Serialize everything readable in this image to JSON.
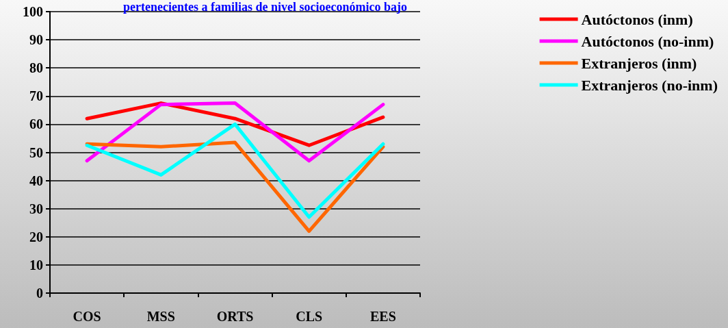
{
  "chart_data": {
    "type": "line",
    "title": "pertenecientes a familias de nivel socioeconómico bajo",
    "categories": [
      "COS",
      "MSS",
      "ORTS",
      "CLS",
      "EES"
    ],
    "series": [
      {
        "name": "Autóctonos (inm)",
        "color": "#ff0000",
        "values": [
          62,
          67.5,
          62,
          52.5,
          62.5
        ]
      },
      {
        "name": "Autóctonos (no-inm)",
        "color": "#ff00ff",
        "values": [
          47,
          67,
          67.5,
          47,
          67
        ]
      },
      {
        "name": "Extranjeros (inm)",
        "color": "#ff6600",
        "values": [
          53,
          52,
          53.5,
          22,
          52
        ]
      },
      {
        "name": "Extranjeros (no-inm)",
        "color": "#00ffff",
        "values": [
          52.5,
          42,
          60,
          27,
          53
        ]
      }
    ],
    "ylim": [
      0,
      100
    ],
    "yticks": [
      0,
      10,
      20,
      30,
      40,
      50,
      60,
      70,
      80,
      90,
      100
    ],
    "grid": "y",
    "legend": "right",
    "marker": "none",
    "line_style": "solid"
  }
}
